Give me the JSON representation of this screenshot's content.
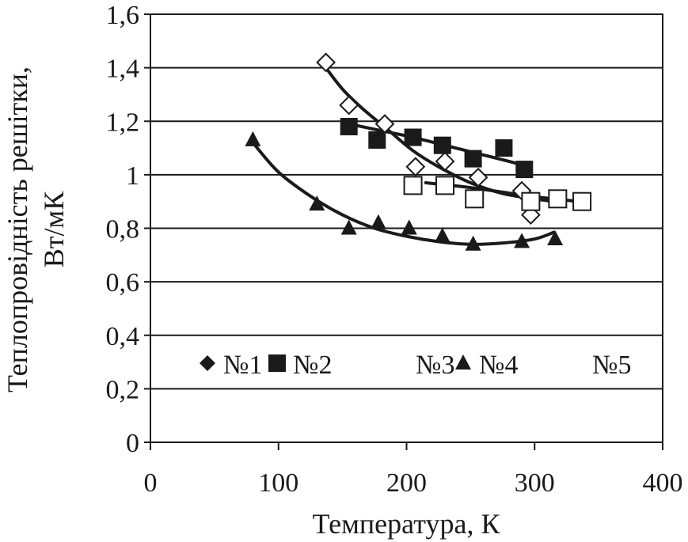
{
  "chart_data": {
    "type": "scatter",
    "title": "",
    "xlabel": "Температура, К",
    "ylabel_line1": "Теплопровідність решітки,",
    "ylabel_line2": "Вт/мК",
    "xlim": [
      0,
      400
    ],
    "ylim": [
      0,
      1.6
    ],
    "x_ticks": [
      {
        "value": 0,
        "label": "0"
      },
      {
        "value": 100,
        "label": "100"
      },
      {
        "value": 200,
        "label": "200"
      },
      {
        "value": 300,
        "label": "300"
      },
      {
        "value": 400,
        "label": "400"
      }
    ],
    "y_ticks": [
      {
        "value": 0,
        "label": "0"
      },
      {
        "value": 0.2,
        "label": "0,2"
      },
      {
        "value": 0.4,
        "label": "0,4"
      },
      {
        "value": 0.6,
        "label": "0,6"
      },
      {
        "value": 0.8,
        "label": "0,8"
      },
      {
        "value": 1.0,
        "label": "1"
      },
      {
        "value": 1.2,
        "label": "1,2"
      },
      {
        "value": 1.4,
        "label": "1,4"
      },
      {
        "value": 1.6,
        "label": "1,6"
      }
    ],
    "grid": "horizontal",
    "legend_position": "bottom",
    "series": [
      {
        "name": "№1",
        "marker": "diamond-filled",
        "points": [],
        "legend_marker": true
      },
      {
        "name": "№2",
        "marker": "square-filled",
        "points": [
          [
            155,
            1.18
          ],
          [
            177,
            1.13
          ],
          [
            205,
            1.14
          ],
          [
            228,
            1.11
          ],
          [
            252,
            1.06
          ],
          [
            276,
            1.1
          ],
          [
            292,
            1.02
          ]
        ],
        "fit": [
          [
            155,
            1.19
          ],
          [
            180,
            1.165
          ],
          [
            205,
            1.14
          ],
          [
            230,
            1.11
          ],
          [
            255,
            1.08
          ],
          [
            280,
            1.05
          ],
          [
            295,
            1.03
          ]
        ],
        "legend_marker": true
      },
      {
        "name": "№3",
        "marker": "diamond-open",
        "points": [
          [
            137,
            1.42
          ],
          [
            155,
            1.26
          ],
          [
            183,
            1.19
          ],
          [
            207,
            1.03
          ],
          [
            230,
            1.05
          ],
          [
            256,
            0.99
          ],
          [
            290,
            0.94
          ],
          [
            297,
            0.85
          ]
        ],
        "fit": [
          [
            137,
            1.4
          ],
          [
            150,
            1.32
          ],
          [
            165,
            1.25
          ],
          [
            185,
            1.17
          ],
          [
            205,
            1.09
          ],
          [
            225,
            1.03
          ],
          [
            250,
            0.97
          ],
          [
            275,
            0.93
          ],
          [
            300,
            0.91
          ],
          [
            315,
            0.9
          ]
        ],
        "legend_marker": false
      },
      {
        "name": "№4",
        "marker": "triangle-filled",
        "points": [
          [
            80,
            1.13
          ],
          [
            130,
            0.89
          ],
          [
            155,
            0.8
          ],
          [
            178,
            0.82
          ],
          [
            202,
            0.8
          ],
          [
            228,
            0.77
          ],
          [
            252,
            0.74
          ],
          [
            290,
            0.75
          ],
          [
            316,
            0.76
          ]
        ],
        "fit": [
          [
            80,
            1.12
          ],
          [
            100,
            1.01
          ],
          [
            125,
            0.92
          ],
          [
            150,
            0.85
          ],
          [
            175,
            0.8
          ],
          [
            200,
            0.77
          ],
          [
            225,
            0.75
          ],
          [
            250,
            0.74
          ],
          [
            275,
            0.745
          ],
          [
            300,
            0.76
          ],
          [
            315,
            0.785
          ]
        ],
        "legend_marker": true
      },
      {
        "name": "№5",
        "marker": "square-open",
        "points": [
          [
            205,
            0.96
          ],
          [
            230,
            0.96
          ],
          [
            253,
            0.91
          ],
          [
            297,
            0.9
          ],
          [
            318,
            0.91
          ],
          [
            337,
            0.9
          ]
        ],
        "fit": [
          [
            215,
            0.97
          ],
          [
            245,
            0.955
          ],
          [
            275,
            0.935
          ],
          [
            305,
            0.915
          ],
          [
            335,
            0.9
          ]
        ],
        "legend_marker": false
      }
    ]
  }
}
